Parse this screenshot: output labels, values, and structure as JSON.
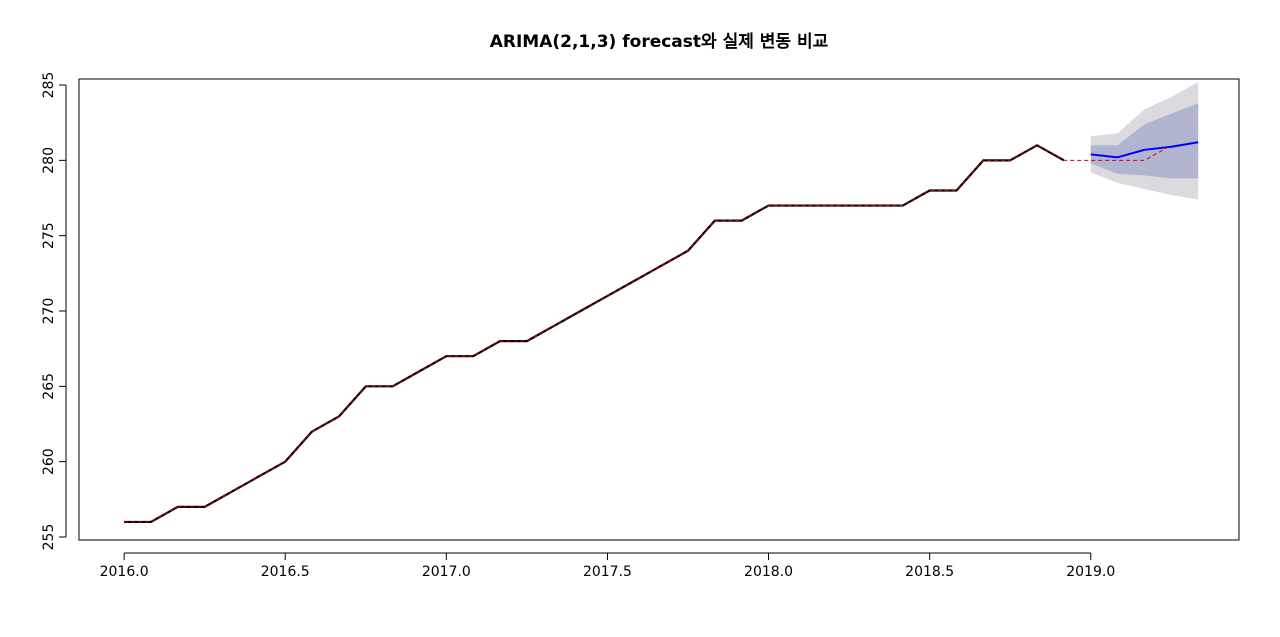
{
  "chart_data": {
    "type": "line",
    "title": "ARIMA(2,1,3) forecast와 실제 변동 비교",
    "xlabel": "",
    "ylabel": "",
    "xlim": [
      2015.86,
      2019.46
    ],
    "ylim": [
      254.8,
      285.4
    ],
    "x_ticks": [
      2016.0,
      2016.5,
      2017.0,
      2017.5,
      2018.0,
      2018.5,
      2019.0
    ],
    "x_tick_labels": [
      "2016.0",
      "2016.5",
      "2017.0",
      "2017.5",
      "2018.0",
      "2018.5",
      "2019.0"
    ],
    "y_ticks": [
      255,
      260,
      265,
      270,
      275,
      280,
      285
    ],
    "y_tick_labels": [
      "255",
      "260",
      "265",
      "270",
      "275",
      "280",
      "285"
    ],
    "grid": false,
    "series": [
      {
        "role": "observed",
        "color": "#000000",
        "style": "solid",
        "x_start": 2016.0,
        "x_step": 0.08333,
        "values": [
          256,
          256,
          257,
          257,
          258,
          259,
          260,
          262,
          263,
          265,
          265,
          266,
          267,
          267,
          268,
          268,
          269,
          270,
          271,
          272,
          273,
          274,
          276,
          276,
          277,
          277,
          277,
          277,
          277,
          277,
          278,
          278,
          280,
          280,
          281,
          280
        ]
      },
      {
        "role": "actual",
        "color": "#cc0000",
        "style": "dashed",
        "x_start": 2016.0,
        "x_step": 0.08333,
        "values": [
          256,
          256,
          257,
          257,
          258,
          259,
          260,
          262,
          263,
          265,
          265,
          266,
          267,
          267,
          268,
          268,
          269,
          270,
          271,
          272,
          273,
          274,
          276,
          276,
          277,
          277,
          277,
          277,
          277,
          277,
          278,
          278,
          280,
          280,
          281,
          280,
          280,
          280,
          280,
          281
        ]
      },
      {
        "role": "forecast",
        "color": "#0000ff",
        "style": "solid",
        "x": [
          2019.0,
          2019.0833,
          2019.1667,
          2019.25,
          2019.3333
        ],
        "values": [
          280.4,
          280.2,
          280.7,
          280.9,
          281.2
        ],
        "lo80": [
          279.8,
          279.1,
          279.0,
          278.8,
          278.8
        ],
        "hi80": [
          281.0,
          281.0,
          282.4,
          283.1,
          283.8
        ],
        "lo95": [
          279.2,
          278.5,
          278.1,
          277.7,
          277.4
        ],
        "hi95": [
          281.6,
          281.8,
          283.4,
          284.2,
          285.2
        ],
        "band80_color": "#b1b5cf",
        "band95_color": "#dbdbdf"
      }
    ]
  }
}
